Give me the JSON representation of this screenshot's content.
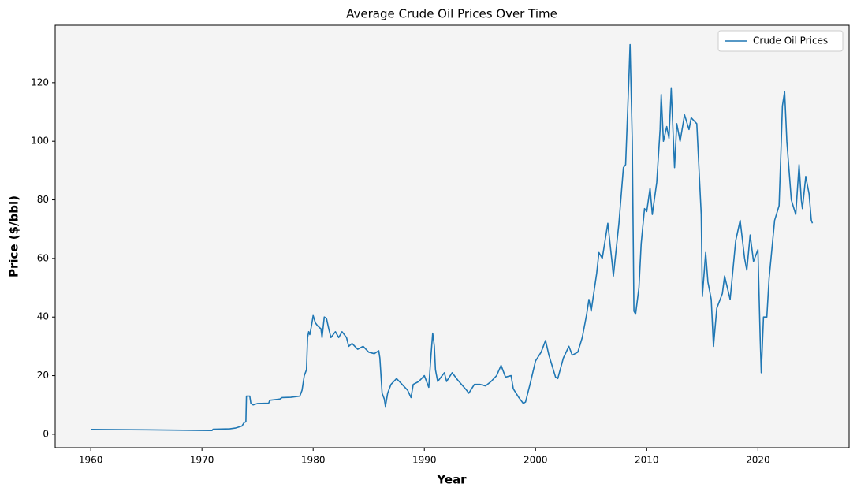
{
  "chart_data": {
    "type": "line",
    "title": "Average Crude Oil Prices Over Time",
    "x_label": "Year",
    "y_label": "Price ($/bbl)",
    "xlim": [
      1956.8,
      2028.2
    ],
    "ylim": [
      -4.6,
      139.6
    ],
    "xticks": [
      1960,
      1970,
      1980,
      1990,
      2000,
      2010,
      2020
    ],
    "yticks": [
      0,
      20,
      40,
      60,
      80,
      100,
      120
    ],
    "legend": "upper right",
    "x": [
      1960,
      1965,
      1970,
      1970.9,
      1971,
      1972.5,
      1973,
      1973.6,
      1973.8,
      1973.95,
      1974.0,
      1974.3,
      1974.4,
      1974.6,
      1975,
      1976,
      1976.1,
      1977,
      1977.2,
      1978,
      1978.8,
      1979.0,
      1979.2,
      1979.4,
      1979.5,
      1979.6,
      1979.7,
      1979.85,
      1980,
      1980.2,
      1980.4,
      1980.7,
      1980.8,
      1981,
      1981.2,
      1981.4,
      1981.6,
      1982,
      1982.3,
      1982.6,
      1983,
      1983.2,
      1983.5,
      1984,
      1984.5,
      1985,
      1985.5,
      1985.9,
      1986.0,
      1986.2,
      1986.4,
      1986.5,
      1986.7,
      1987,
      1987.5,
      1988,
      1988.5,
      1988.8,
      1989,
      1989.5,
      1990,
      1990.4,
      1990.6,
      1990.75,
      1990.9,
      1991,
      1991.2,
      1991.8,
      1992,
      1992.5,
      1993,
      1993.8,
      1994,
      1994.5,
      1995,
      1995.5,
      1996,
      1996.5,
      1996.9,
      1997.3,
      1997.8,
      1998,
      1998.5,
      1998.9,
      1999.1,
      1999.5,
      2000,
      2000.5,
      2000.9,
      2001.2,
      2001.8,
      2002,
      2002.5,
      2003,
      2003.3,
      2003.8,
      2004.2,
      2004.6,
      2004.8,
      2005,
      2005.5,
      2005.7,
      2006,
      2006.5,
      2006.9,
      2007,
      2007.5,
      2007.9,
      2008.1,
      2008.4,
      2008.5,
      2008.7,
      2008.85,
      2009,
      2009.3,
      2009.5,
      2009.8,
      2010,
      2010.3,
      2010.5,
      2010.9,
      2011.2,
      2011.3,
      2011.5,
      2011.8,
      2012,
      2012.2,
      2012.5,
      2012.7,
      2013,
      2013.4,
      2013.8,
      2014,
      2014.5,
      2014.9,
      2015,
      2015.3,
      2015.5,
      2015.8,
      2016,
      2016.3,
      2016.8,
      2017,
      2017.5,
      2018,
      2018.4,
      2018.8,
      2019,
      2019.3,
      2019.6,
      2020,
      2020.2,
      2020.3,
      2020.5,
      2020.8,
      2021,
      2021.5,
      2021.9,
      2022.1,
      2022.2,
      2022.4,
      2022.6,
      2022.8,
      2023,
      2023.4,
      2023.7,
      2023.9,
      2024,
      2024.3,
      2024.6,
      2024.8,
      2024.9
    ],
    "series": [
      {
        "name": "Crude Oil Prices",
        "color": "#1f77b4",
        "values": [
          1.63,
          1.5,
          1.3,
          1.25,
          1.7,
          1.85,
          2.1,
          2.8,
          4,
          4.2,
          13,
          13,
          10.5,
          10,
          10.5,
          10.6,
          11.6,
          12,
          12.5,
          12.6,
          13,
          15,
          20,
          22,
          33,
          35,
          34,
          37,
          40.5,
          38,
          37,
          36,
          33,
          40,
          39.5,
          36,
          33,
          35,
          33,
          35,
          33,
          30,
          31,
          29,
          30,
          28,
          27.5,
          28.5,
          26,
          14,
          12,
          9.5,
          14,
          17,
          19,
          17,
          15,
          12.5,
          17,
          18,
          20,
          16,
          27,
          34.5,
          30,
          22,
          18,
          21,
          18,
          21,
          18.5,
          15,
          14,
          17,
          17,
          16.5,
          18,
          20,
          23.5,
          19.5,
          20,
          15.5,
          12.5,
          10.5,
          11,
          17,
          25,
          28,
          32,
          27,
          19.5,
          19,
          26,
          30,
          27,
          28,
          33,
          41,
          46,
          42,
          55,
          62,
          60,
          72,
          58,
          54,
          72,
          91,
          92,
          122,
          133,
          100,
          42,
          41,
          50,
          65,
          77,
          76,
          84,
          75,
          86,
          104,
          116,
          100,
          105,
          101,
          118,
          91,
          106,
          100,
          109,
          104,
          108,
          106,
          75,
          47,
          62,
          52,
          46,
          30,
          43,
          48,
          54,
          46,
          66,
          73,
          60,
          56,
          68,
          59,
          63,
          33,
          21,
          40,
          40,
          53,
          73,
          78,
          100,
          112,
          117,
          100,
          90,
          80,
          75,
          92,
          80,
          77,
          88,
          82,
          73,
          72
        ]
      }
    ]
  }
}
